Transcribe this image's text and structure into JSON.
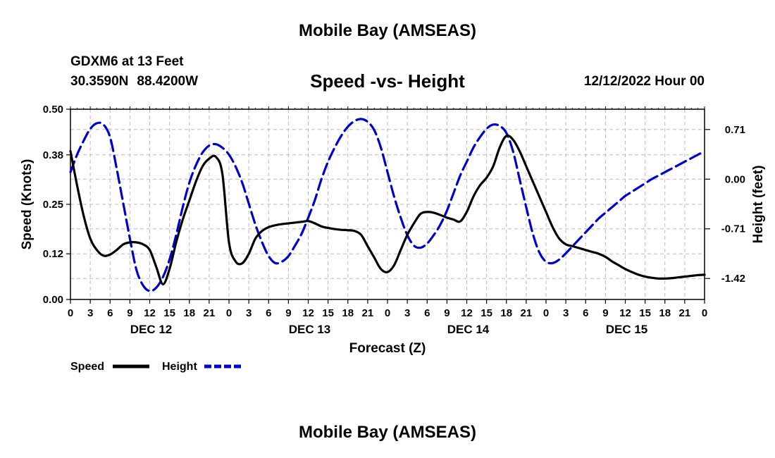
{
  "header": {
    "title": "Mobile Bay (AMSEAS)",
    "station": "GDXM6 at 13 Feet",
    "lat": "30.3590N",
    "lon": "88.4200W",
    "chart_title": "Speed -vs- Height",
    "run_time": "12/12/2022 Hour 00"
  },
  "footer": {
    "title": "Mobile Bay (AMSEAS)"
  },
  "colors": {
    "speed": "#000000",
    "height": "#0000cc",
    "grid": "#bbbbbb"
  },
  "chart_data": {
    "type": "line",
    "title": "Speed -vs- Height",
    "xlabel": "Forecast (Z)",
    "ylabel": "Speed (Knots)",
    "y2label": "Height (feet)",
    "xlim": [
      0,
      96
    ],
    "ylim": [
      0,
      0.5
    ],
    "y2lim": [
      -1.72,
      1.0
    ],
    "grid": true,
    "legend_position": "bottom-left",
    "x_ticks": [
      0,
      3,
      6,
      9,
      12,
      15,
      18,
      21,
      24,
      27,
      30,
      33,
      36,
      39,
      42,
      45,
      48,
      51,
      54,
      57,
      60,
      63,
      66,
      69,
      72,
      75,
      78,
      81,
      84,
      87,
      90,
      93,
      96
    ],
    "x_tick_labels": [
      "0",
      "3",
      "6",
      "9",
      "12",
      "15",
      "18",
      "21",
      "0",
      "3",
      "6",
      "9",
      "12",
      "15",
      "18",
      "21",
      "0",
      "3",
      "6",
      "9",
      "12",
      "15",
      "18",
      "21",
      "0",
      "3",
      "6",
      "9",
      "12",
      "15",
      "18",
      "21",
      "0"
    ],
    "day_labels": [
      {
        "label": "DEC 12",
        "hour": 12
      },
      {
        "label": "DEC 13",
        "hour": 36
      },
      {
        "label": "DEC 14",
        "hour": 60
      },
      {
        "label": "DEC 15",
        "hour": 84
      }
    ],
    "y_ticks": [
      0.0,
      0.12,
      0.25,
      0.38,
      0.5
    ],
    "y_tick_labels": [
      "0.00",
      "0.12",
      "0.25",
      "0.38",
      "0.50"
    ],
    "y2_ticks": [
      0.71,
      0.0,
      -0.71,
      -1.42
    ],
    "y2_tick_labels": [
      "0.71",
      "0.00",
      "-0.71",
      "-1.42"
    ],
    "series": [
      {
        "name": "Speed",
        "axis": "left",
        "style": "solid",
        "x": [
          0,
          1,
          2,
          3,
          4,
          5,
          6,
          7,
          8,
          9,
          10,
          11,
          12,
          13,
          14,
          15,
          16,
          17,
          18,
          19,
          20,
          21,
          22,
          23,
          24,
          25,
          26,
          27,
          28,
          29,
          30,
          31,
          32,
          33,
          34,
          35,
          36,
          37,
          38,
          39,
          40,
          41,
          42,
          43,
          44,
          45,
          46,
          47,
          48,
          49,
          50,
          51,
          52,
          53,
          54,
          55,
          56,
          57,
          58,
          59,
          60,
          61,
          62,
          63,
          64,
          65,
          66,
          67,
          68,
          69,
          70,
          71,
          72,
          73,
          74,
          75,
          76,
          77,
          78,
          79,
          80,
          81,
          82,
          83,
          84,
          85,
          86,
          87,
          88,
          89,
          90,
          91,
          92,
          93,
          94,
          95,
          96
        ],
        "values": [
          0.39,
          0.3,
          0.22,
          0.16,
          0.13,
          0.115,
          0.118,
          0.13,
          0.145,
          0.15,
          0.15,
          0.145,
          0.13,
          0.085,
          0.04,
          0.08,
          0.15,
          0.21,
          0.26,
          0.31,
          0.35,
          0.37,
          0.375,
          0.33,
          0.15,
          0.1,
          0.095,
          0.12,
          0.16,
          0.18,
          0.19,
          0.195,
          0.198,
          0.2,
          0.202,
          0.204,
          0.206,
          0.2,
          0.192,
          0.188,
          0.185,
          0.183,
          0.182,
          0.18,
          0.17,
          0.14,
          0.11,
          0.08,
          0.072,
          0.09,
          0.13,
          0.17,
          0.2,
          0.225,
          0.23,
          0.228,
          0.222,
          0.215,
          0.21,
          0.205,
          0.23,
          0.27,
          0.3,
          0.32,
          0.35,
          0.4,
          0.43,
          0.42,
          0.39,
          0.35,
          0.31,
          0.27,
          0.23,
          0.19,
          0.16,
          0.145,
          0.14,
          0.135,
          0.13,
          0.125,
          0.12,
          0.112,
          0.1,
          0.09,
          0.08,
          0.072,
          0.065,
          0.06,
          0.057,
          0.055,
          0.055,
          0.056,
          0.058,
          0.06,
          0.062,
          0.064,
          0.065
        ]
      },
      {
        "name": "Height",
        "axis": "right",
        "style": "dashed",
        "x": [
          0,
          1,
          2,
          3,
          4,
          5,
          6,
          7,
          8,
          9,
          10,
          11,
          12,
          13,
          14,
          15,
          16,
          17,
          18,
          19,
          20,
          21,
          22,
          23,
          24,
          25,
          26,
          27,
          28,
          29,
          30,
          31,
          32,
          33,
          34,
          35,
          36,
          37,
          38,
          39,
          40,
          41,
          42,
          43,
          44,
          45,
          46,
          47,
          48,
          49,
          50,
          51,
          52,
          53,
          54,
          55,
          56,
          57,
          58,
          59,
          60,
          61,
          62,
          63,
          64,
          65,
          66,
          67,
          68,
          69,
          70,
          71,
          72,
          73,
          74,
          75,
          76,
          77,
          78,
          79,
          80,
          81,
          82,
          83,
          84,
          85,
          86,
          87,
          88,
          89,
          90,
          91,
          92,
          93,
          94,
          95,
          96
        ],
        "values": [
          0.1,
          0.35,
          0.55,
          0.72,
          0.8,
          0.78,
          0.6,
          0.15,
          -0.35,
          -0.85,
          -1.3,
          -1.52,
          -1.6,
          -1.55,
          -1.4,
          -1.15,
          -0.8,
          -0.4,
          -0.05,
          0.2,
          0.38,
          0.48,
          0.5,
          0.45,
          0.35,
          0.18,
          -0.05,
          -0.35,
          -0.65,
          -0.9,
          -1.1,
          -1.2,
          -1.18,
          -1.1,
          -0.95,
          -0.78,
          -0.55,
          -0.3,
          0.0,
          0.25,
          0.45,
          0.62,
          0.75,
          0.83,
          0.86,
          0.82,
          0.7,
          0.45,
          0.1,
          -0.25,
          -0.55,
          -0.8,
          -0.95,
          -0.98,
          -0.92,
          -0.8,
          -0.65,
          -0.45,
          -0.2,
          0.05,
          0.25,
          0.45,
          0.6,
          0.72,
          0.78,
          0.76,
          0.66,
          0.4,
          0.0,
          -0.4,
          -0.78,
          -1.05,
          -1.18,
          -1.2,
          -1.15,
          -1.06,
          -0.96,
          -0.86,
          -0.76,
          -0.66,
          -0.56,
          -0.48,
          -0.4,
          -0.32,
          -0.24,
          -0.18,
          -0.12,
          -0.06,
          0.0,
          0.05,
          0.1,
          0.15,
          0.2,
          0.25,
          0.3,
          0.35,
          0.4
        ]
      }
    ]
  }
}
